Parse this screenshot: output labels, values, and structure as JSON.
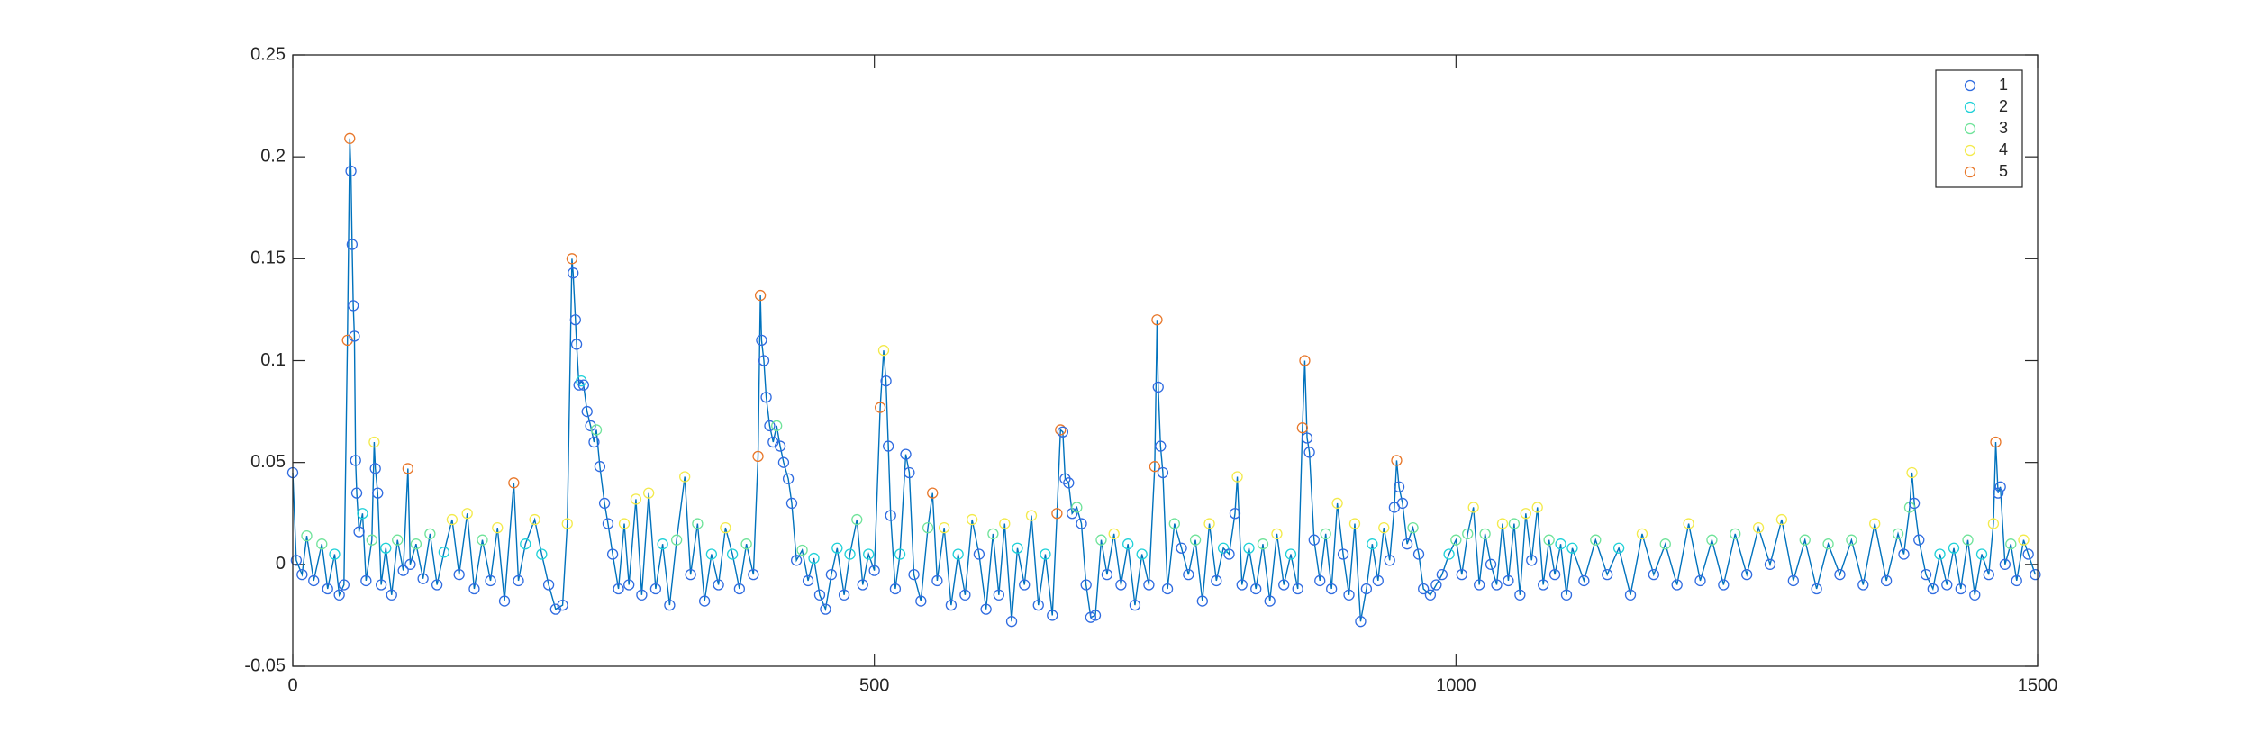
{
  "chart_data": {
    "type": "line",
    "line_color": "#0072bd",
    "xlim": [
      0,
      1500
    ],
    "xticks": [
      0,
      500,
      1000,
      1500
    ],
    "ylim": [
      -0.05,
      0.25
    ],
    "yticks": [
      -0.05,
      0,
      0.05,
      0.1,
      0.15,
      0.2,
      0.25
    ],
    "legend": "top-right",
    "series": [
      {
        "name": "1",
        "color": "#2f6be0"
      },
      {
        "name": "2",
        "color": "#1fd1d8"
      },
      {
        "name": "3",
        "color": "#6fe39a"
      },
      {
        "name": "4",
        "color": "#f3ea4a"
      },
      {
        "name": "5",
        "color": "#e8772a"
      }
    ],
    "x": [
      0,
      3,
      8,
      12,
      18,
      25,
      30,
      36,
      40,
      44,
      47,
      49,
      50,
      51,
      52,
      53,
      54,
      55,
      57,
      60,
      63,
      68,
      70,
      71,
      73,
      76,
      80,
      85,
      90,
      95,
      99,
      101,
      106,
      112,
      118,
      124,
      130,
      137,
      143,
      150,
      156,
      163,
      170,
      176,
      182,
      190,
      194,
      200,
      208,
      214,
      220,
      226,
      232,
      236,
      240,
      241,
      243,
      244,
      246,
      248,
      250,
      253,
      256,
      259,
      261,
      264,
      268,
      271,
      275,
      280,
      285,
      289,
      295,
      300,
      306,
      312,
      318,
      324,
      330,
      337,
      342,
      348,
      354,
      360,
      366,
      372,
      378,
      384,
      390,
      396,
      400,
      402,
      403,
      405,
      407,
      410,
      413,
      416,
      419,
      422,
      426,
      429,
      433,
      438,
      443,
      448,
      453,
      458,
      463,
      468,
      474,
      479,
      485,
      490,
      495,
      500,
      505,
      508,
      510,
      512,
      514,
      518,
      522,
      527,
      530,
      534,
      540,
      546,
      550,
      554,
      560,
      566,
      572,
      578,
      584,
      590,
      596,
      602,
      607,
      612,
      618,
      623,
      629,
      635,
      641,
      647,
      653,
      657,
      660,
      662,
      664,
      667,
      670,
      674,
      678,
      682,
      686,
      690,
      695,
      700,
      706,
      712,
      718,
      724,
      730,
      736,
      741,
      743,
      744,
      746,
      748,
      752,
      758,
      764,
      770,
      776,
      782,
      788,
      794,
      800,
      805,
      810,
      812,
      816,
      822,
      828,
      834,
      840,
      846,
      852,
      858,
      864,
      868,
      870,
      872,
      874,
      878,
      883,
      888,
      893,
      898,
      903,
      908,
      913,
      918,
      923,
      928,
      933,
      938,
      943,
      947,
      949,
      951,
      954,
      958,
      963,
      968,
      972,
      978,
      983,
      988,
      994,
      1000,
      1005,
      1010,
      1015,
      1020,
      1025,
      1030,
      1035,
      1040,
      1045,
      1050,
      1055,
      1060,
      1065,
      1070,
      1075,
      1080,
      1085,
      1090,
      1095,
      1100,
      1110,
      1120,
      1130,
      1140,
      1150,
      1160,
      1170,
      1180,
      1190,
      1200,
      1210,
      1220,
      1230,
      1240,
      1250,
      1260,
      1270,
      1280,
      1290,
      1300,
      1310,
      1320,
      1330,
      1340,
      1350,
      1360,
      1370,
      1380,
      1385,
      1390,
      1392,
      1394,
      1398,
      1404,
      1410,
      1416,
      1422,
      1428,
      1434,
      1440,
      1446,
      1452,
      1458,
      1462,
      1464,
      1466,
      1468,
      1472,
      1477,
      1482,
      1488,
      1492,
      1498
    ],
    "values": [
      0.045,
      0.002,
      -0.005,
      0.014,
      -0.008,
      0.01,
      -0.012,
      0.005,
      -0.015,
      -0.01,
      0.11,
      0.209,
      0.193,
      0.157,
      0.127,
      0.112,
      0.051,
      0.035,
      0.016,
      0.025,
      -0.008,
      0.012,
      0.06,
      0.047,
      0.035,
      -0.01,
      0.008,
      -0.015,
      0.012,
      -0.003,
      0.047,
      0,
      0.01,
      -0.007,
      0.015,
      -0.01,
      0.006,
      0.022,
      -0.005,
      0.025,
      -0.012,
      0.012,
      -0.008,
      0.018,
      -0.018,
      0.04,
      -0.008,
      0.01,
      0.022,
      0.005,
      -0.01,
      -0.022,
      -0.02,
      0.02,
      0.15,
      0.143,
      0.12,
      0.108,
      0.088,
      0.09,
      0.088,
      0.075,
      0.068,
      0.06,
      0.066,
      0.048,
      0.03,
      0.02,
      0.005,
      -0.012,
      0.02,
      -0.01,
      0.032,
      -0.015,
      0.035,
      -0.012,
      0.01,
      -0.02,
      0.012,
      0.043,
      -0.005,
      0.02,
      -0.018,
      0.005,
      -0.01,
      0.018,
      0.005,
      -0.012,
      0.01,
      -0.005,
      0.053,
      0.132,
      0.11,
      0.1,
      0.082,
      0.068,
      0.06,
      0.068,
      0.058,
      0.05,
      0.042,
      0.03,
      0.002,
      0.007,
      -0.008,
      0.003,
      -0.015,
      -0.022,
      -0.005,
      0.008,
      -0.015,
      0.005,
      0.022,
      -0.01,
      0.005,
      -0.003,
      0.077,
      0.105,
      0.09,
      0.058,
      0.024,
      -0.012,
      0.005,
      0.054,
      0.045,
      -0.005,
      -0.018,
      0.018,
      0.035,
      -0.008,
      0.018,
      -0.02,
      0.005,
      -0.015,
      0.022,
      0.005,
      -0.022,
      0.015,
      -0.015,
      0.02,
      -0.028,
      0.008,
      -0.01,
      0.024,
      -0.02,
      0.005,
      -0.025,
      0.025,
      0.066,
      0.065,
      0.042,
      0.04,
      0.025,
      0.028,
      0.02,
      -0.01,
      -0.026,
      -0.025,
      0.012,
      -0.005,
      0.015,
      -0.01,
      0.01,
      -0.02,
      0.005,
      -0.01,
      0.048,
      0.12,
      0.087,
      0.058,
      0.045,
      -0.012,
      0.02,
      0.008,
      -0.005,
      0.012,
      -0.018,
      0.02,
      -0.008,
      0.008,
      0.005,
      0.025,
      0.043,
      -0.01,
      0.008,
      -0.012,
      0.01,
      -0.018,
      0.015,
      -0.01,
      0.005,
      -0.012,
      0.067,
      0.1,
      0.062,
      0.055,
      0.012,
      -0.008,
      0.015,
      -0.012,
      0.03,
      0.005,
      -0.015,
      0.02,
      -0.028,
      -0.012,
      0.01,
      -0.008,
      0.018,
      0.002,
      0.028,
      0.051,
      0.038,
      0.03,
      0.01,
      0.018,
      0.005,
      -0.012,
      -0.015,
      -0.01,
      -0.005,
      0.005,
      0.012,
      -0.005,
      0.015,
      0.028,
      -0.01,
      0.015,
      0,
      -0.01,
      0.02,
      -0.008,
      0.02,
      -0.015,
      0.025,
      0.002,
      0.028,
      -0.01,
      0.012,
      -0.005,
      0.01,
      -0.015,
      0.008,
      -0.008,
      0.012,
      -0.005,
      0.008,
      -0.015,
      0.015,
      -0.005,
      0.01,
      -0.01,
      0.02,
      -0.008,
      0.012,
      -0.01,
      0.015,
      -0.005,
      0.018,
      0,
      0.022,
      -0.008,
      0.012,
      -0.012,
      0.01,
      -0.005,
      0.012,
      -0.01,
      0.02,
      -0.008,
      0.015,
      0.005,
      0.028,
      0.045,
      0.03,
      0.012,
      -0.005,
      -0.012,
      0.005,
      -0.01,
      0.008,
      -0.012,
      0.012,
      -0.015,
      0.005,
      -0.005,
      0.02,
      0.06,
      0.035,
      0.038,
      0,
      0.01,
      -0.008,
      0.012,
      0.005,
      -0.005
    ],
    "point_series": [
      0,
      0,
      0,
      2,
      0,
      2,
      0,
      1,
      0,
      0,
      4,
      4,
      0,
      0,
      0,
      0,
      0,
      0,
      0,
      1,
      0,
      2,
      3,
      0,
      0,
      0,
      1,
      0,
      2,
      0,
      4,
      0,
      2,
      0,
      2,
      0,
      1,
      3,
      0,
      3,
      0,
      2,
      0,
      3,
      0,
      4,
      0,
      1,
      3,
      1,
      0,
      0,
      0,
      3,
      4,
      0,
      0,
      0,
      0,
      1,
      0,
      0,
      0,
      0,
      2,
      0,
      0,
      0,
      0,
      0,
      3,
      0,
      3,
      0,
      3,
      0,
      1,
      0,
      2,
      3,
      0,
      2,
      0,
      1,
      0,
      3,
      1,
      0,
      2,
      0,
      4,
      4,
      0,
      0,
      0,
      0,
      0,
      2,
      0,
      0,
      0,
      0,
      0,
      2,
      0,
      1,
      0,
      0,
      0,
      1,
      0,
      1,
      2,
      0,
      1,
      0,
      4,
      3,
      0,
      0,
      0,
      0,
      1,
      0,
      0,
      0,
      0,
      2,
      4,
      0,
      3,
      0,
      1,
      0,
      3,
      0,
      0,
      2,
      0,
      3,
      0,
      1,
      0,
      3,
      0,
      1,
      0,
      4,
      4,
      0,
      0,
      0,
      0,
      2,
      0,
      0,
      0,
      0,
      2,
      0,
      3,
      0,
      1,
      0,
      1,
      0,
      4,
      4,
      0,
      0,
      0,
      0,
      2,
      0,
      0,
      2,
      0,
      3,
      0,
      1,
      0,
      0,
      3,
      0,
      1,
      0,
      2,
      0,
      3,
      0,
      1,
      0,
      4,
      4,
      0,
      0,
      0,
      0,
      2,
      0,
      3,
      0,
      0,
      3,
      0,
      0,
      1,
      0,
      3,
      0,
      0,
      4,
      0,
      0,
      0,
      2,
      0,
      0,
      0,
      0,
      0,
      1,
      2,
      0,
      2,
      3,
      0,
      2,
      0,
      0,
      3,
      0,
      2,
      0,
      3,
      0,
      3,
      0,
      2,
      0,
      1,
      0,
      1,
      0,
      2,
      0,
      1,
      0,
      3,
      0,
      2,
      0,
      3,
      0,
      2,
      0,
      2,
      0,
      3,
      0,
      3,
      0,
      2,
      0,
      2,
      0,
      2,
      0,
      3,
      0,
      2,
      0,
      2,
      3,
      0,
      0,
      0,
      0,
      1,
      0,
      1,
      0,
      2,
      0,
      1,
      0,
      3,
      4,
      0,
      0,
      0,
      2,
      0,
      3,
      0,
      0
    ]
  }
}
